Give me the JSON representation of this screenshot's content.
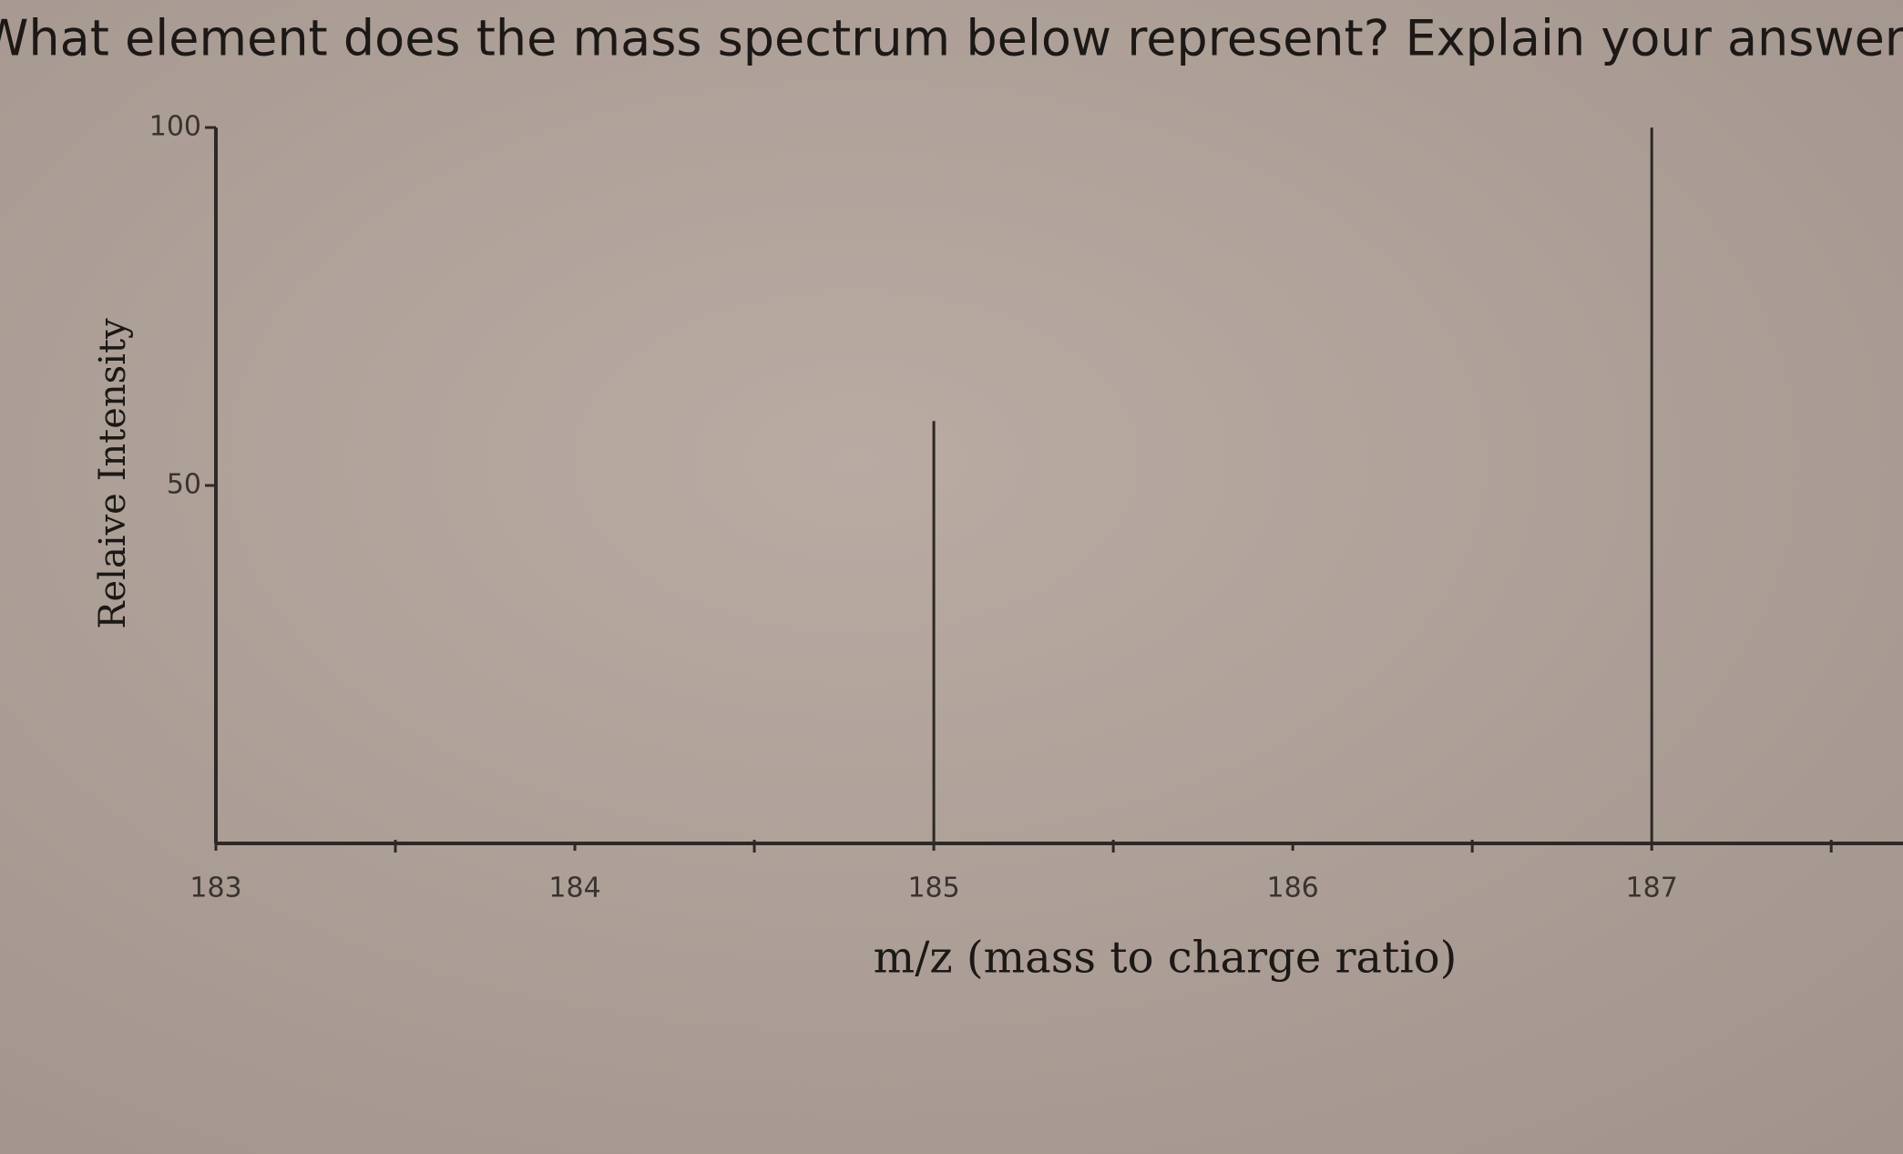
{
  "question": "What element does the mass spectrum below represent? Explain your answer.",
  "chart_data": {
    "type": "bar",
    "x_label": "m/z (mass to charge ratio)",
    "y_label": "Relaive Intensity",
    "x": [
      185,
      187
    ],
    "values": [
      59,
      100
    ],
    "color": "#2e2926",
    "xlim": [
      183,
      187.7
    ],
    "xticks": [
      183,
      184,
      185,
      186,
      187
    ],
    "xminorticks": [
      183.5,
      184.5,
      185.5,
      186.5,
      187.5
    ],
    "ylim": [
      0,
      100
    ],
    "yticks": [
      50,
      100
    ],
    "grid": false
  }
}
